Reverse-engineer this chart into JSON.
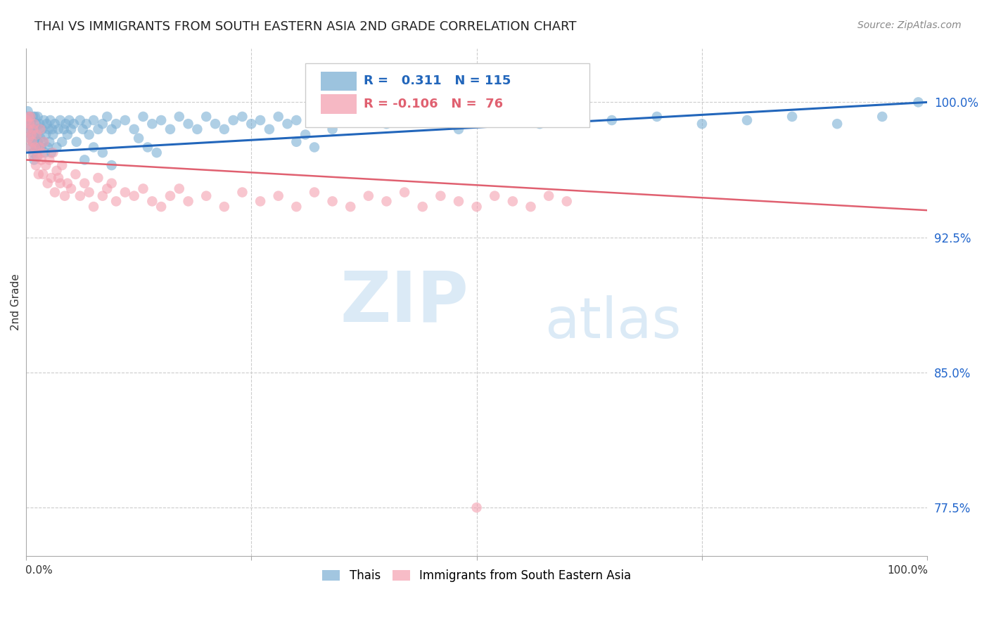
{
  "title": "THAI VS IMMIGRANTS FROM SOUTH EASTERN ASIA 2ND GRADE CORRELATION CHART",
  "source": "Source: ZipAtlas.com",
  "ylabel": "2nd Grade",
  "ylabel_right_ticks": [
    1.0,
    0.925,
    0.85,
    0.775
  ],
  "ylabel_right_tick_labels": [
    "100.0%",
    "92.5%",
    "85.0%",
    "77.5%"
  ],
  "legend_blue_label": "Thais",
  "legend_pink_label": "Immigrants from South Eastern Asia",
  "blue_R": 0.311,
  "blue_N": 115,
  "pink_R": -0.106,
  "pink_N": 76,
  "blue_color": "#7bafd4",
  "pink_color": "#f4a0b0",
  "blue_line_color": "#2266bb",
  "pink_line_color": "#e06070",
  "background_color": "#ffffff",
  "grid_color": "#cccccc",
  "title_color": "#222222",
  "axis_label_color": "#2266cc",
  "xmin": 0.0,
  "xmax": 1.0,
  "ymin": 0.748,
  "ymax": 1.03,
  "blue_scatter_x": [
    0.001,
    0.002,
    0.002,
    0.003,
    0.003,
    0.004,
    0.004,
    0.005,
    0.005,
    0.006,
    0.006,
    0.007,
    0.007,
    0.008,
    0.008,
    0.009,
    0.009,
    0.01,
    0.01,
    0.011,
    0.011,
    0.012,
    0.012,
    0.013,
    0.013,
    0.014,
    0.015,
    0.015,
    0.016,
    0.017,
    0.018,
    0.019,
    0.02,
    0.021,
    0.022,
    0.023,
    0.024,
    0.025,
    0.026,
    0.027,
    0.028,
    0.029,
    0.03,
    0.032,
    0.034,
    0.036,
    0.038,
    0.04,
    0.042,
    0.044,
    0.046,
    0.048,
    0.05,
    0.053,
    0.056,
    0.06,
    0.063,
    0.067,
    0.07,
    0.075,
    0.08,
    0.085,
    0.09,
    0.095,
    0.1,
    0.11,
    0.12,
    0.13,
    0.14,
    0.15,
    0.16,
    0.17,
    0.18,
    0.19,
    0.2,
    0.21,
    0.22,
    0.23,
    0.24,
    0.25,
    0.26,
    0.27,
    0.28,
    0.29,
    0.3,
    0.32,
    0.34,
    0.36,
    0.38,
    0.4,
    0.42,
    0.45,
    0.48,
    0.51,
    0.54,
    0.57,
    0.6,
    0.65,
    0.7,
    0.75,
    0.8,
    0.85,
    0.9,
    0.95,
    0.99,
    0.065,
    0.075,
    0.085,
    0.095,
    0.3,
    0.31,
    0.32,
    0.125,
    0.135,
    0.145
  ],
  "blue_scatter_y": [
    0.992,
    0.988,
    0.995,
    0.985,
    0.99,
    0.98,
    0.992,
    0.975,
    0.988,
    0.982,
    0.99,
    0.978,
    0.985,
    0.972,
    0.992,
    0.968,
    0.985,
    0.98,
    0.992,
    0.975,
    0.988,
    0.97,
    0.982,
    0.978,
    0.992,
    0.985,
    0.975,
    0.988,
    0.98,
    0.975,
    0.985,
    0.978,
    0.99,
    0.972,
    0.982,
    0.988,
    0.975,
    0.985,
    0.978,
    0.99,
    0.972,
    0.985,
    0.982,
    0.988,
    0.975,
    0.985,
    0.99,
    0.978,
    0.985,
    0.988,
    0.982,
    0.99,
    0.985,
    0.988,
    0.978,
    0.99,
    0.985,
    0.988,
    0.982,
    0.99,
    0.985,
    0.988,
    0.992,
    0.985,
    0.988,
    0.99,
    0.985,
    0.992,
    0.988,
    0.99,
    0.985,
    0.992,
    0.988,
    0.985,
    0.992,
    0.988,
    0.985,
    0.99,
    0.992,
    0.988,
    0.99,
    0.985,
    0.992,
    0.988,
    0.99,
    0.992,
    0.985,
    0.99,
    0.992,
    0.988,
    0.99,
    0.992,
    0.985,
    0.99,
    0.992,
    0.988,
    0.992,
    0.99,
    0.992,
    0.988,
    0.99,
    0.992,
    0.988,
    0.992,
    1.0,
    0.968,
    0.975,
    0.972,
    0.965,
    0.978,
    0.982,
    0.975,
    0.98,
    0.975,
    0.972
  ],
  "pink_scatter_x": [
    0.001,
    0.002,
    0.003,
    0.003,
    0.004,
    0.005,
    0.005,
    0.006,
    0.007,
    0.008,
    0.008,
    0.009,
    0.01,
    0.011,
    0.012,
    0.013,
    0.014,
    0.015,
    0.016,
    0.017,
    0.018,
    0.019,
    0.02,
    0.022,
    0.024,
    0.026,
    0.028,
    0.03,
    0.032,
    0.034,
    0.036,
    0.038,
    0.04,
    0.043,
    0.046,
    0.05,
    0.055,
    0.06,
    0.065,
    0.07,
    0.075,
    0.08,
    0.085,
    0.09,
    0.095,
    0.1,
    0.11,
    0.12,
    0.13,
    0.14,
    0.15,
    0.16,
    0.17,
    0.18,
    0.2,
    0.22,
    0.24,
    0.26,
    0.28,
    0.3,
    0.32,
    0.34,
    0.36,
    0.38,
    0.4,
    0.42,
    0.44,
    0.46,
    0.48,
    0.5,
    0.52,
    0.54,
    0.56,
    0.58,
    0.6,
    0.5
  ],
  "pink_scatter_y": [
    0.99,
    0.985,
    0.992,
    0.98,
    0.988,
    0.975,
    0.992,
    0.982,
    0.978,
    0.985,
    0.97,
    0.988,
    0.975,
    0.965,
    0.982,
    0.97,
    0.96,
    0.975,
    0.985,
    0.968,
    0.972,
    0.96,
    0.978,
    0.965,
    0.955,
    0.968,
    0.958,
    0.972,
    0.95,
    0.962,
    0.958,
    0.955,
    0.965,
    0.948,
    0.955,
    0.952,
    0.96,
    0.948,
    0.955,
    0.95,
    0.942,
    0.958,
    0.948,
    0.952,
    0.955,
    0.945,
    0.95,
    0.948,
    0.952,
    0.945,
    0.942,
    0.948,
    0.952,
    0.945,
    0.948,
    0.942,
    0.95,
    0.945,
    0.948,
    0.942,
    0.95,
    0.945,
    0.942,
    0.948,
    0.945,
    0.95,
    0.942,
    0.948,
    0.945,
    0.942,
    0.948,
    0.945,
    0.942,
    0.948,
    0.945,
    0.775
  ],
  "blue_trendline_x": [
    0.0,
    1.0
  ],
  "blue_trendline_y": [
    0.972,
    1.0
  ],
  "pink_trendline_x": [
    0.0,
    1.0
  ],
  "pink_trendline_y": [
    0.968,
    0.94
  ]
}
